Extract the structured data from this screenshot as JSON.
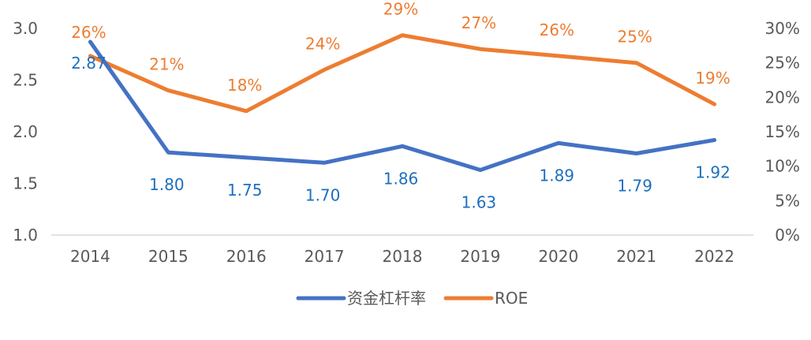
{
  "chart_data": {
    "type": "line",
    "categories": [
      "2014",
      "2015",
      "2016",
      "2017",
      "2018",
      "2019",
      "2020",
      "2021",
      "2022"
    ],
    "series": [
      {
        "name": "资金杠杆率",
        "axis": "left",
        "color": "#4472C4",
        "label_color": "#1F6FBF",
        "values": [
          2.87,
          1.8,
          1.75,
          1.7,
          1.86,
          1.63,
          1.89,
          1.79,
          1.92
        ],
        "labels": [
          "2.87",
          "1.80",
          "1.75",
          "1.70",
          "1.86",
          "1.63",
          "1.89",
          "1.79",
          "1.92"
        ]
      },
      {
        "name": "ROE",
        "axis": "right",
        "color": "#ED7D31",
        "label_color": "#ED7D31",
        "values": [
          26,
          21,
          18,
          24,
          29,
          27,
          26,
          25,
          19
        ],
        "labels": [
          "26%",
          "21%",
          "18%",
          "24%",
          "29%",
          "27%",
          "26%",
          "25%",
          "19%"
        ]
      }
    ],
    "y_left": {
      "min": 1.0,
      "max": 3.0,
      "ticks": [
        "1.0",
        "1.5",
        "2.0",
        "2.5",
        "3.0"
      ]
    },
    "y_right": {
      "min": 0,
      "max": 30,
      "ticks": [
        "0%",
        "5%",
        "10%",
        "15%",
        "20%",
        "25%",
        "30%"
      ]
    },
    "legend": {
      "position": "bottom",
      "entries": [
        "资金杠杆率",
        "ROE"
      ]
    },
    "title": "",
    "xlabel": "",
    "ylabel": ""
  }
}
